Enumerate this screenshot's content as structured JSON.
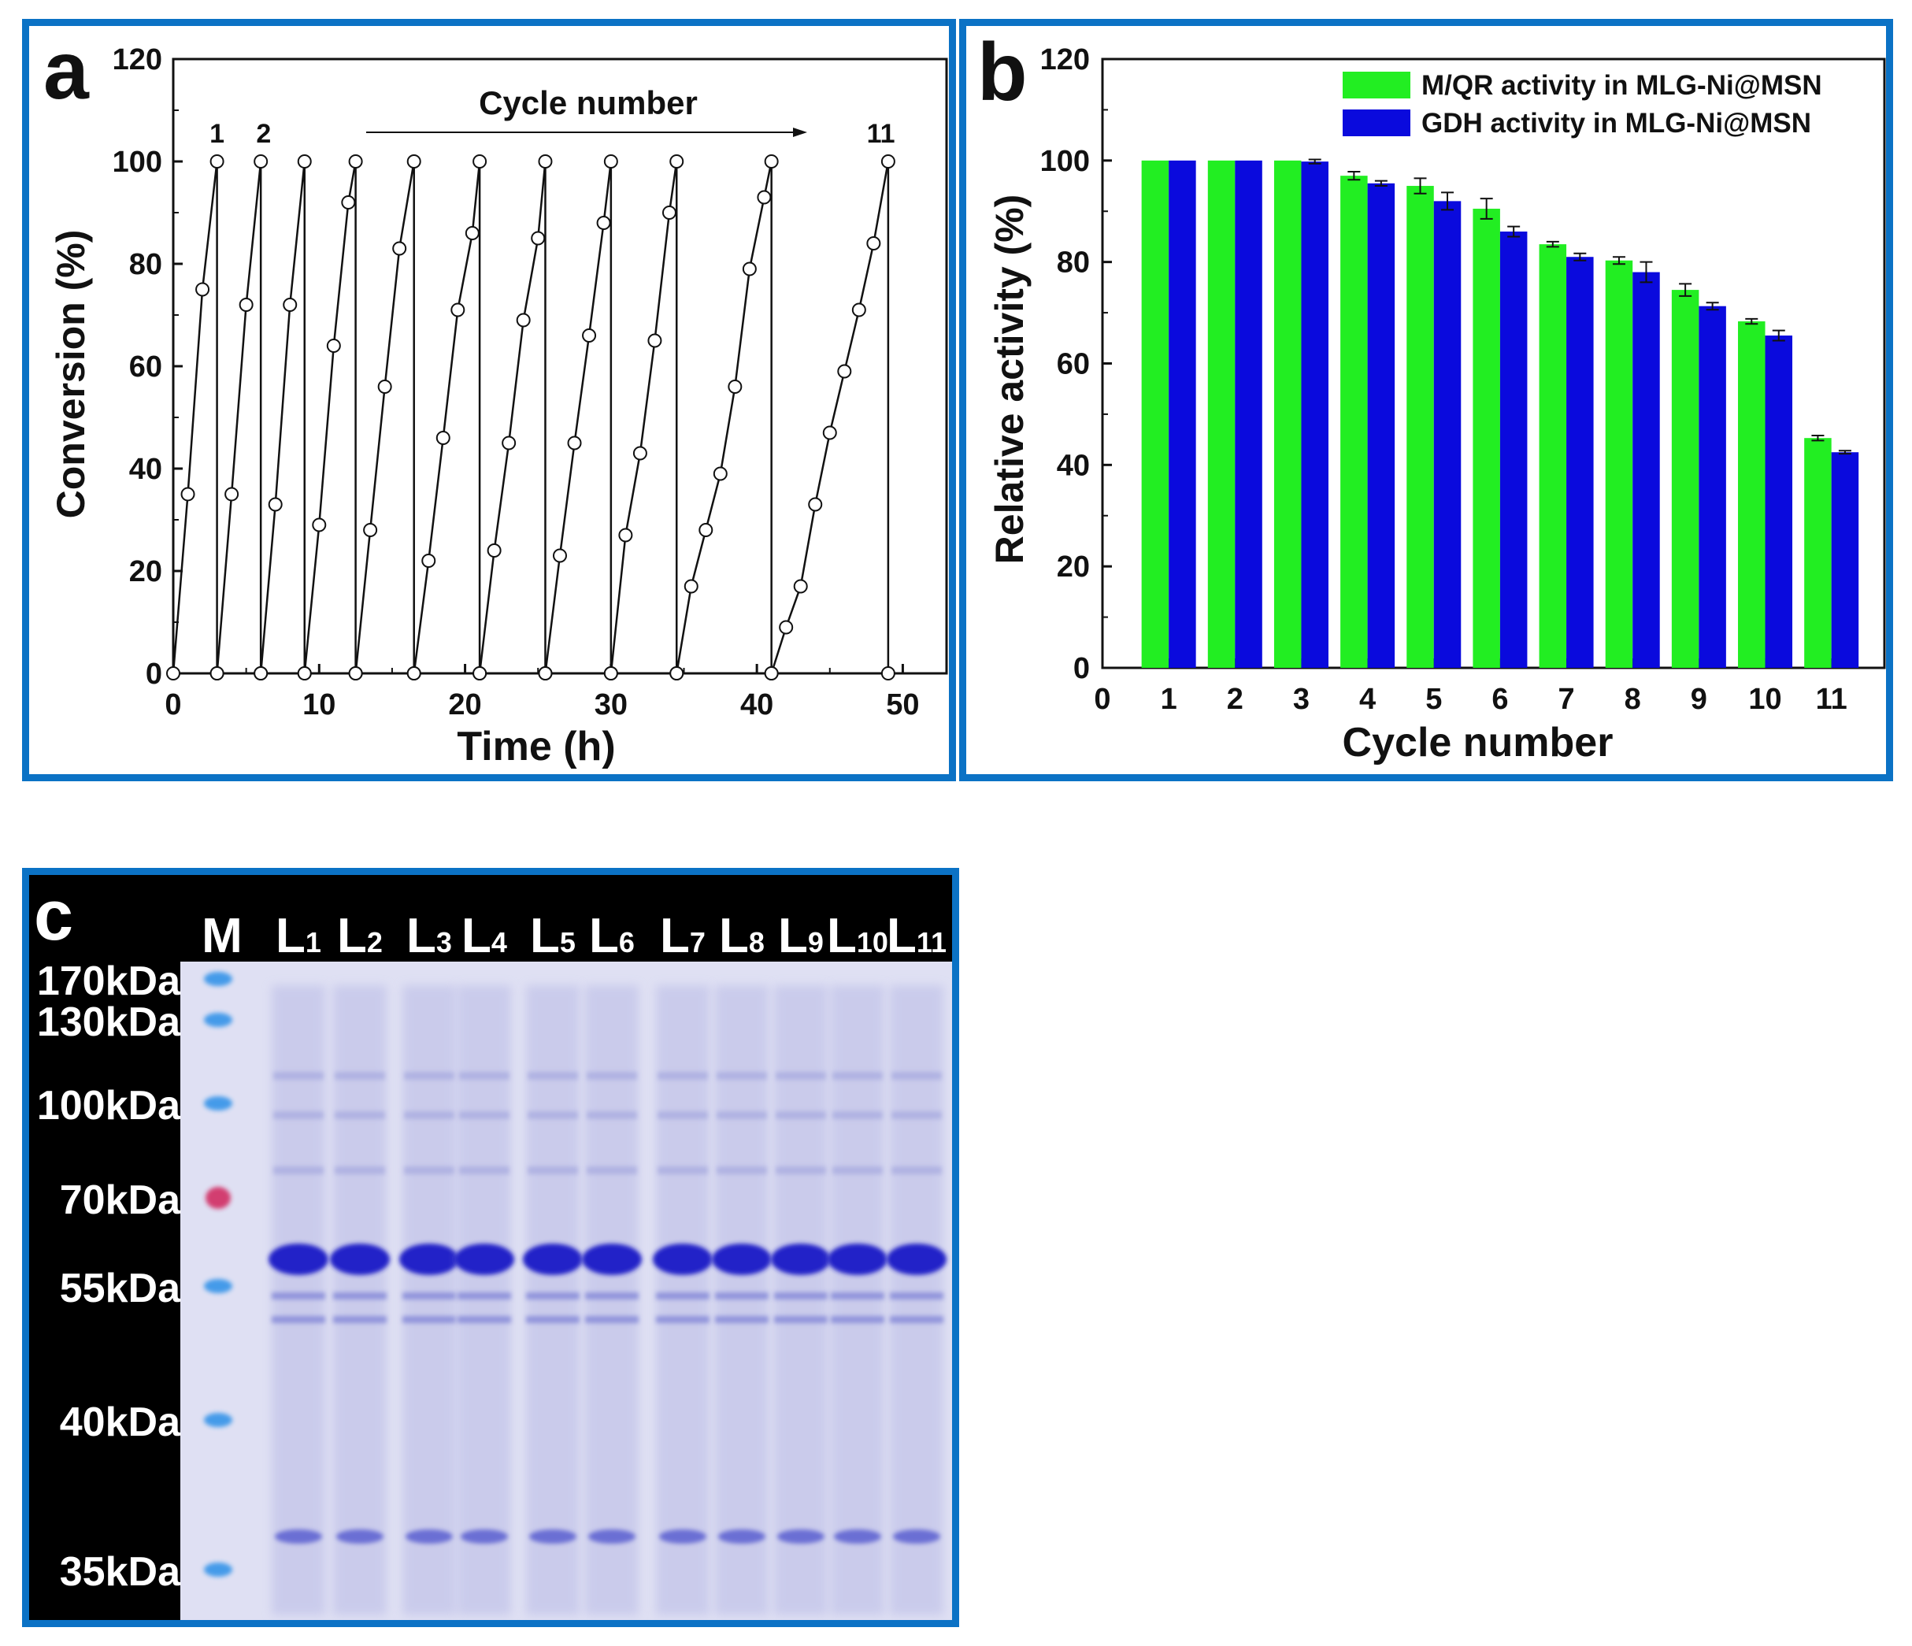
{
  "chart_data": [
    {
      "panel": "a",
      "type": "line",
      "panel_letter": "a",
      "xlabel": "Time (h)",
      "ylabel": "Conversion (%)",
      "xlim": [
        0,
        53
      ],
      "ylim": [
        0,
        120
      ],
      "xticks": [
        0,
        10,
        20,
        30,
        40,
        50
      ],
      "yticks": [
        0,
        20,
        40,
        60,
        80,
        100,
        120
      ],
      "annotation_text": "Cycle number",
      "cycle_labels": [
        {
          "text": "1",
          "x": 3.0
        },
        {
          "text": "2",
          "x": 6.2
        },
        {
          "text": "11",
          "x": 48.5
        }
      ],
      "cycles": [
        {
          "x": [
            0,
            1,
            2,
            3
          ],
          "y": [
            0,
            35,
            75,
            100
          ]
        },
        {
          "x": [
            3,
            4,
            5,
            6
          ],
          "y": [
            0,
            35,
            72,
            100
          ]
        },
        {
          "x": [
            6,
            7,
            8,
            9
          ],
          "y": [
            0,
            33,
            72,
            100
          ]
        },
        {
          "x": [
            9,
            10,
            11,
            12,
            12.5
          ],
          "y": [
            0,
            29,
            64,
            92,
            100
          ]
        },
        {
          "x": [
            12.5,
            13.5,
            14.5,
            15.5,
            16.5
          ],
          "y": [
            0,
            28,
            56,
            83,
            100
          ]
        },
        {
          "x": [
            16.5,
            17.5,
            18.5,
            19.5,
            20.5,
            21
          ],
          "y": [
            0,
            22,
            46,
            71,
            86,
            100
          ]
        },
        {
          "x": [
            21,
            22,
            23,
            24,
            25,
            25.5
          ],
          "y": [
            0,
            24,
            45,
            69,
            85,
            100
          ]
        },
        {
          "x": [
            25.5,
            26.5,
            27.5,
            28.5,
            29.5,
            30
          ],
          "y": [
            0,
            23,
            45,
            66,
            88,
            100
          ]
        },
        {
          "x": [
            30,
            31,
            32,
            33,
            34,
            34.5
          ],
          "y": [
            0,
            27,
            43,
            65,
            90,
            100
          ]
        },
        {
          "x": [
            34.5,
            35.5,
            36.5,
            37.5,
            38.5,
            39.5,
            40.5,
            41
          ],
          "y": [
            0,
            17,
            28,
            39,
            56,
            79,
            93,
            100
          ]
        },
        {
          "x": [
            41,
            42,
            43,
            44,
            45,
            46,
            47,
            48,
            49
          ],
          "y": [
            0,
            9,
            17,
            33,
            47,
            59,
            71,
            84,
            100
          ]
        }
      ]
    },
    {
      "panel": "b",
      "type": "bar",
      "panel_letter": "b",
      "xlabel": "Cycle number",
      "ylabel": "Relative activity (%)",
      "xlim": [
        0,
        11.8
      ],
      "ylim": [
        0,
        120
      ],
      "xticks": [
        0,
        1,
        2,
        3,
        4,
        5,
        6,
        7,
        8,
        9,
        10,
        11
      ],
      "yticks": [
        0,
        20,
        40,
        60,
        80,
        100,
        120
      ],
      "categories": [
        "1",
        "2",
        "3",
        "4",
        "5",
        "6",
        "7",
        "8",
        "9",
        "10",
        "11"
      ],
      "legend_position": "top-right",
      "series": [
        {
          "name": "M/QR activity in MLG-Ni@MSN",
          "color": "#22ee22",
          "values": [
            100,
            100,
            100,
            97,
            95,
            90.5,
            83.5,
            80.3,
            74.5,
            68.3,
            45.3
          ],
          "errors": [
            0,
            0,
            0,
            0.8,
            1.5,
            2,
            0.5,
            0.7,
            1.2,
            0.5,
            0.5
          ]
        },
        {
          "name": "GDH activity in MLG-Ni@MSN",
          "color": "#0a0add",
          "values": [
            100,
            100,
            99.8,
            95.5,
            92,
            86,
            81,
            78,
            71.3,
            65.5,
            42.5
          ],
          "errors": [
            0,
            0,
            0.4,
            0.5,
            1.7,
            1,
            0.7,
            2,
            0.7,
            1,
            0.3
          ]
        }
      ]
    }
  ],
  "gel": {
    "panel_letter": "c",
    "lane_labels": [
      {
        "main": "M",
        "sub": ""
      },
      {
        "main": "L",
        "sub": "1"
      },
      {
        "main": "L",
        "sub": "2"
      },
      {
        "main": "L",
        "sub": "3"
      },
      {
        "main": "L",
        "sub": "4"
      },
      {
        "main": "L",
        "sub": "5"
      },
      {
        "main": "L",
        "sub": "6"
      },
      {
        "main": "L",
        "sub": "7"
      },
      {
        "main": "L",
        "sub": "8"
      },
      {
        "main": "L",
        "sub": "9"
      },
      {
        "main": "L",
        "sub": "10"
      },
      {
        "main": "L",
        "sub": "11"
      }
    ],
    "markers": [
      "170kDa",
      "130kDa",
      "100kDa",
      "70kDa",
      "55kDa",
      "40kDa",
      "35kDa"
    ],
    "colors": {
      "gel_bg": "#dfe0f3",
      "band": "#2121c8",
      "marker_blue": "#2a8fe8",
      "marker_red": "#d0245a"
    }
  }
}
